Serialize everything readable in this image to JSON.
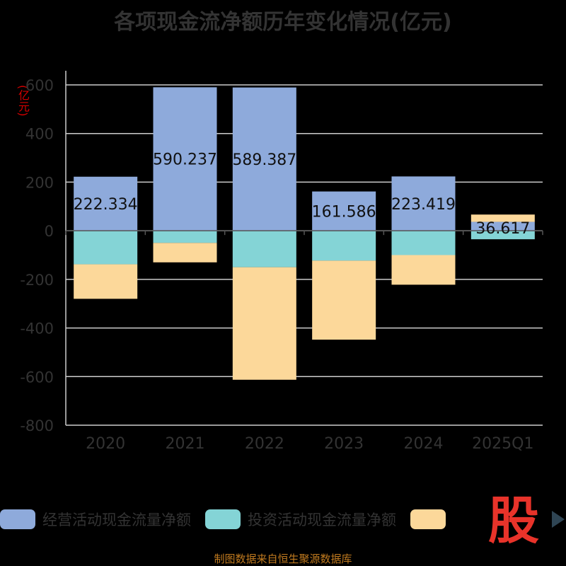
{
  "title": "各项现金流净额历年变化情况(亿元)",
  "unit_label": "(亿元)",
  "source_note": "制图数据来自恒生聚源数据库",
  "logo_text": "股",
  "colors": {
    "operating": "#8eaadb",
    "investing": "#84d4d6",
    "financing": "#fcd89a",
    "grid": "#cccccc",
    "axis_text": "#333333"
  },
  "legend": [
    {
      "name": "经营活动现金流量净额",
      "color": "#8eaadb"
    },
    {
      "name": "投资活动现金流量净额",
      "color": "#84d4d6"
    },
    {
      "name": "",
      "color": "#fcd89a"
    }
  ],
  "chart_data": {
    "type": "bar",
    "stacked": true,
    "categories": [
      "2020",
      "2021",
      "2022",
      "2023",
      "2024",
      "2025Q1"
    ],
    "series": [
      {
        "name": "经营活动现金流量净额",
        "values": [
          222.334,
          590.237,
          589.387,
          161.586,
          223.419,
          36.617
        ]
      },
      {
        "name": "投资活动现金流量净额",
        "values": [
          -138,
          -50,
          -150,
          -123,
          -100,
          -35
        ]
      },
      {
        "values": [
          -142,
          -80,
          -463,
          -325,
          -122,
          30
        ]
      }
    ],
    "data_labels": [
      "222.334",
      "590.237",
      "589.387",
      "161.586",
      "223.419",
      "36.617"
    ],
    "ylim": [
      -800,
      600
    ],
    "yticks": [
      600,
      400,
      200,
      0,
      -200,
      -400,
      -600,
      -800
    ],
    "grid": true
  }
}
